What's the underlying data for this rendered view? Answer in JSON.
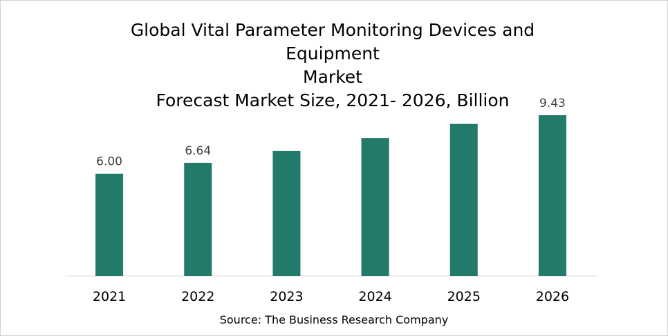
{
  "chart_data": {
    "type": "bar",
    "title_lines": [
      "Global Vital Parameter Monitoring Devices and Equipment",
      "Market",
      "Forecast Market Size, 2021- 2026, Billion"
    ],
    "categories": [
      "2021",
      "2022",
      "2023",
      "2024",
      "2025",
      "2026"
    ],
    "values": [
      6.0,
      6.64,
      7.33,
      8.09,
      8.92,
      9.43
    ],
    "data_labels": [
      "6.00",
      "6.64",
      "",
      "",
      "",
      "9.43"
    ],
    "ylim": [
      0,
      9.43
    ],
    "grid": false,
    "legend": "none",
    "bar_color": "#217a6a",
    "source": "Source: The Business Research Company"
  }
}
